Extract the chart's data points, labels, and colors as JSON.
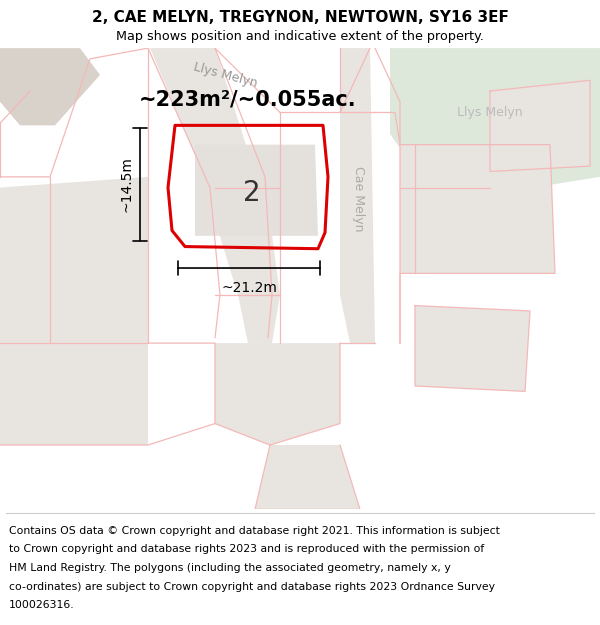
{
  "title_line1": "2, CAE MELYN, TREGYNON, NEWTOWN, SY16 3EF",
  "title_line2": "Map shows position and indicative extent of the property.",
  "footer_lines": [
    "Contains OS data © Crown copyright and database right 2021. This information is subject",
    "to Crown copyright and database rights 2023 and is reproduced with the permission of",
    "HM Land Registry. The polygons (including the associated geometry, namely x, y",
    "co-ordinates) are subject to Crown copyright and database rights 2023 Ordnance Survey",
    "100026316."
  ],
  "area_text": "~223m²/~0.055ac.",
  "width_label": "~21.2m",
  "height_label": "~14.5m",
  "house_number": "2",
  "road_label_diag": "Llys Melyn",
  "road_label_right": "Llys Melyn",
  "road_label_vert": "Cae Melyn",
  "bg_color": "#ffffff",
  "map_bg": "#ffffff",
  "pink": "#f4b8b8",
  "pink_lw": 0.9,
  "red_outline": "#dd0000",
  "red_lw": 2.2,
  "gray_road": "#e8e4e0",
  "gray_block_dark": "#d9d2ca",
  "gray_block_light": "#e8e5e1",
  "green_area": "#dde8db",
  "title_fontsize": 11,
  "footer_fontsize": 7.8,
  "area_fontsize": 15,
  "house_fontsize": 20,
  "road_fontsize": 9,
  "dim_fontsize": 10
}
